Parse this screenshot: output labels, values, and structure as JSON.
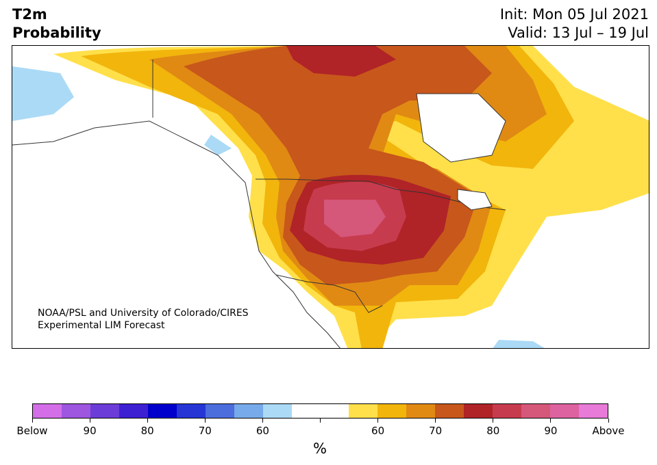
{
  "header": {
    "title_line1": "T2m",
    "title_line2": "Probability",
    "init": "Init: Mon 05 Jul 2021",
    "valid": "Valid: 13 Jul – 19 Jul"
  },
  "credit": {
    "line1": "NOAA/PSL and University of Colorado/CIRES",
    "line2": "Experimental LIM Forecast"
  },
  "colorbar": {
    "colors": [
      "#d46ee8",
      "#9e55e0",
      "#6b3cd8",
      "#3d20d2",
      "#0000cc",
      "#2536d4",
      "#4c6ddc",
      "#77aaea",
      "#abdaf6",
      "#ffffff",
      "#ffffff",
      "#ffe04a",
      "#f2b50c",
      "#e08a14",
      "#c8571b",
      "#b02327",
      "#c73b4e",
      "#d5577a",
      "#dd62a0",
      "#e87ad8"
    ],
    "tick_labels": [
      "Below",
      "90",
      "80",
      "70",
      "60",
      "",
      "60",
      "70",
      "80",
      "90",
      "Above"
    ],
    "unit": "%"
  },
  "map": {
    "region": "North America",
    "legend_meaning": "probability of above/below normal 2m temperature"
  }
}
